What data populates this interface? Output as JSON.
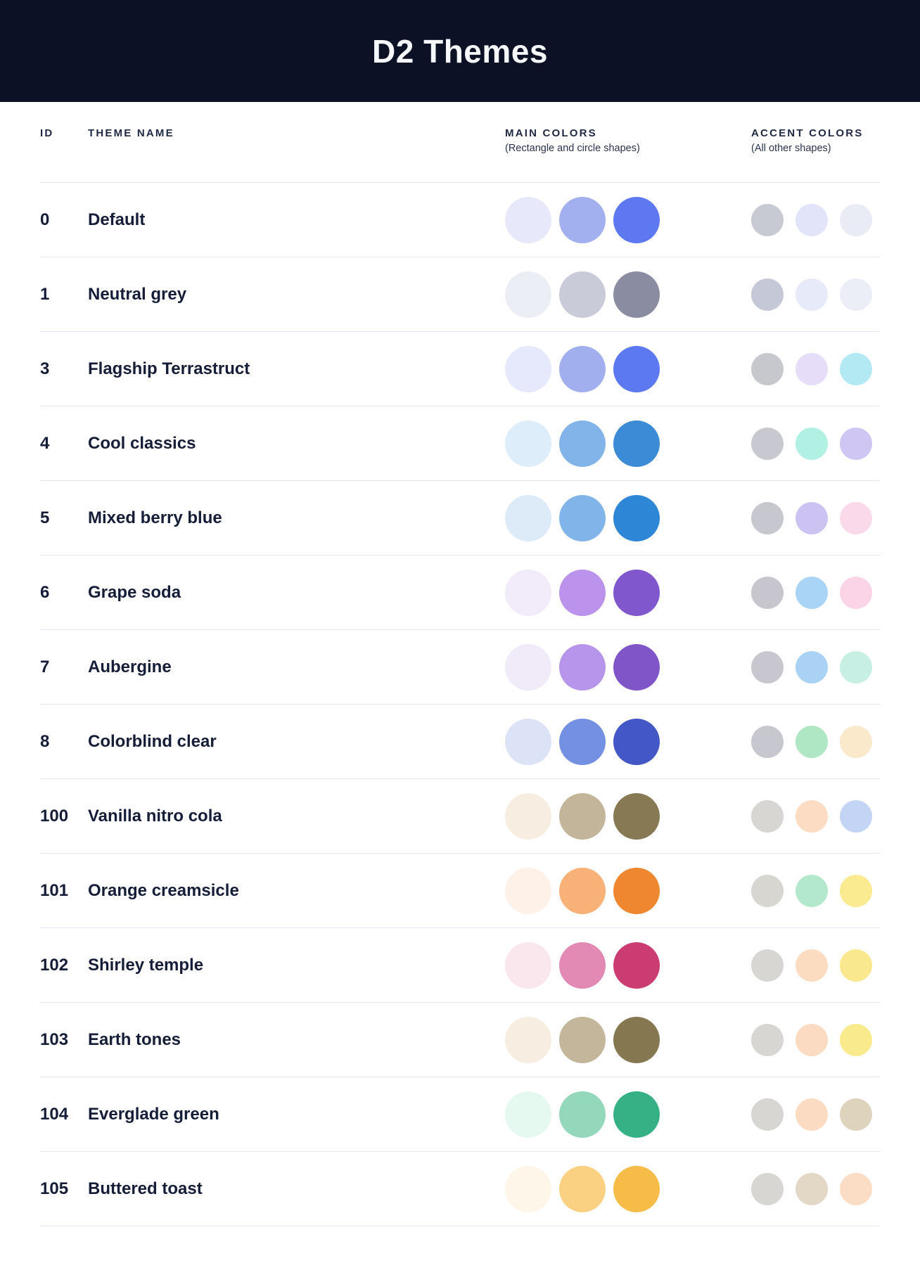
{
  "header": {
    "title": "D2 Themes",
    "background": "#0C1126",
    "text_color": "#F7F8FB"
  },
  "table": {
    "columns": {
      "id_label": "ID",
      "name_label": "THEME NAME",
      "main_label": "MAIN COLORS",
      "main_sub": "(Rectangle and circle shapes)",
      "accent_label": "ACCENT COLORS",
      "accent_sub": "(All other shapes)"
    },
    "divider_color": "#E3E6EF",
    "rows": [
      {
        "id": "0",
        "name": "Default",
        "main": [
          "#E7E9FB",
          "#A3B0F0",
          "#5E78F2"
        ],
        "accent": [
          "#C8CAD3",
          "#E2E4FA",
          "#E9EBF5"
        ]
      },
      {
        "id": "1",
        "name": "Neutral grey",
        "main": [
          "#ECEEF6",
          "#C9CBD8",
          "#8A8DA1"
        ],
        "accent": [
          "#C5C8D6",
          "#E7EAF8",
          "#EBEEF6"
        ]
      },
      {
        "id": "3",
        "name": "Flagship Terrastruct",
        "main": [
          "#E6E9FC",
          "#A2AFEF",
          "#5D79F1"
        ],
        "accent": [
          "#C7C8CD",
          "#E6DDF8",
          "#B2E9F3"
        ]
      },
      {
        "id": "4",
        "name": "Cool classics",
        "main": [
          "#DEEDFA",
          "#83B4E9",
          "#3C8BD6"
        ],
        "accent": [
          "#C8C8D1",
          "#B0F1E3",
          "#CFC6F4"
        ]
      },
      {
        "id": "5",
        "name": "Mixed berry blue",
        "main": [
          "#DDEBF9",
          "#81B5EA",
          "#2E86D7"
        ],
        "accent": [
          "#C7C7CF",
          "#CCC3F3",
          "#FAD9EA"
        ]
      },
      {
        "id": "6",
        "name": "Grape soda",
        "main": [
          "#F1EBFA",
          "#BB93EC",
          "#8157CE"
        ],
        "accent": [
          "#C7C6CE",
          "#AAD4F6",
          "#FBD4E8"
        ]
      },
      {
        "id": "7",
        "name": "Aubergine",
        "main": [
          "#F0EAF9",
          "#B795EA",
          "#8055C8"
        ],
        "accent": [
          "#C8C7CF",
          "#A9D2F4",
          "#C7EFE3"
        ]
      },
      {
        "id": "8",
        "name": "Colorblind clear",
        "main": [
          "#DDE3F7",
          "#7390E2",
          "#4357C6"
        ],
        "accent": [
          "#C7C8CF",
          "#AFE6C4",
          "#FAEACB"
        ]
      },
      {
        "id": "100",
        "name": "Vanilla nitro cola",
        "main": [
          "#F7EEE1",
          "#C2B59A",
          "#877954"
        ],
        "accent": [
          "#D8D6D2",
          "#FCDCC2",
          "#C4D4F5"
        ]
      },
      {
        "id": "101",
        "name": "Orange creamsicle",
        "main": [
          "#FDF1E8",
          "#F8B177",
          "#EF8630"
        ],
        "accent": [
          "#D8D6D1",
          "#B3E8CC",
          "#FAEB91"
        ]
      },
      {
        "id": "102",
        "name": "Shirley temple",
        "main": [
          "#FAE7EE",
          "#E289B4",
          "#CB3D72"
        ],
        "accent": [
          "#D8D6D2",
          "#FBDCC1",
          "#F9E88D"
        ]
      },
      {
        "id": "103",
        "name": "Earth tones",
        "main": [
          "#F7EEE1",
          "#C3B69B",
          "#857750"
        ],
        "accent": [
          "#D8D6D2",
          "#FBDCC2",
          "#FAEA8E"
        ]
      },
      {
        "id": "104",
        "name": "Everglade green",
        "main": [
          "#E6F9F1",
          "#93D8BA",
          "#36B186"
        ],
        "accent": [
          "#D8D6D2",
          "#FBDCC3",
          "#DED3BD"
        ]
      },
      {
        "id": "105",
        "name": "Buttered toast",
        "main": [
          "#FDF6E9",
          "#FAD182",
          "#F7BB47"
        ],
        "accent": [
          "#D8D6D2",
          "#E2D8C5",
          "#FBDCC4"
        ]
      }
    ]
  }
}
